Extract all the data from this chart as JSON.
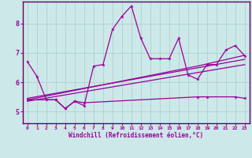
{
  "xlabel": "Windchill (Refroidissement éolien,°C)",
  "bg_color": "#cce8e8",
  "line_color": "#990099",
  "grid_color": "#aacccc",
  "spine_color": "#660066",
  "x_min": -0.5,
  "x_max": 23.5,
  "y_min": 4.6,
  "y_max": 8.75,
  "yticks": [
    5,
    6,
    7,
    8
  ],
  "xticks": [
    0,
    1,
    2,
    3,
    4,
    5,
    6,
    7,
    8,
    9,
    10,
    11,
    12,
    13,
    14,
    15,
    16,
    17,
    18,
    19,
    20,
    21,
    22,
    23
  ],
  "main_x": [
    0,
    1,
    2,
    3,
    4,
    5,
    6,
    7,
    8,
    9,
    10,
    11,
    12,
    13,
    14,
    15,
    16,
    17,
    18,
    19,
    20,
    21,
    22,
    23
  ],
  "main_y": [
    6.7,
    6.2,
    5.4,
    5.4,
    5.1,
    5.35,
    5.2,
    6.55,
    6.6,
    7.8,
    8.25,
    8.6,
    7.5,
    6.8,
    6.8,
    6.8,
    7.5,
    6.25,
    6.1,
    6.6,
    6.6,
    7.1,
    7.25,
    6.9
  ],
  "flat_x": [
    0,
    3,
    4,
    5,
    6,
    18,
    19,
    22,
    23
  ],
  "flat_y": [
    5.4,
    5.4,
    5.1,
    5.35,
    5.3,
    5.5,
    5.5,
    5.5,
    5.45
  ],
  "trend1_x": [
    0,
    23
  ],
  "trend1_y": [
    5.35,
    6.6
  ],
  "trend2_x": [
    0,
    23
  ],
  "trend2_y": [
    5.45,
    6.78
  ],
  "trend3_x": [
    0,
    18,
    23
  ],
  "trend3_y": [
    5.4,
    6.55,
    6.92
  ]
}
